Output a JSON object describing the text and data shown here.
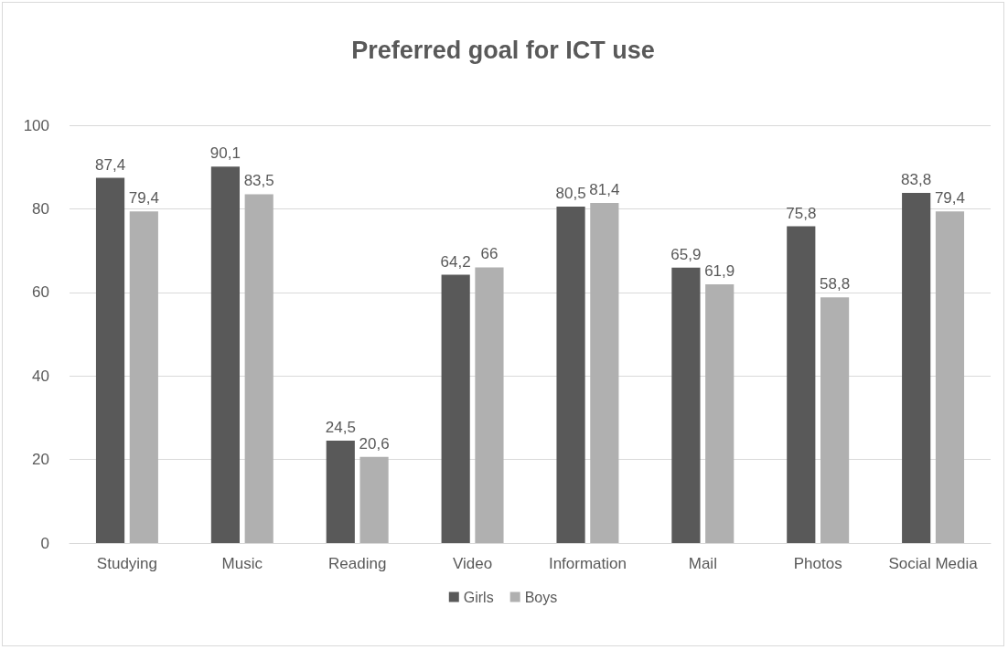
{
  "chart_data": {
    "type": "bar",
    "title": "Preferred goal for ICT use",
    "categories": [
      "Studying",
      "Music",
      "Reading",
      "Video",
      "Information",
      "Mail",
      "Photos",
      "Social Media"
    ],
    "series": [
      {
        "name": "Girls",
        "color": "#595959",
        "values": [
          87.4,
          90.1,
          24.5,
          64.2,
          80.5,
          65.9,
          75.8,
          83.8
        ],
        "value_labels": [
          "87,4",
          "90,1",
          "24,5",
          "64,2",
          "80,5",
          "65,9",
          "75,8",
          "83,8"
        ]
      },
      {
        "name": "Boys",
        "color": "#b0b0b0",
        "values": [
          79.4,
          83.5,
          20.6,
          66,
          81.4,
          61.9,
          58.8,
          79.4
        ],
        "value_labels": [
          "79,4",
          "83,5",
          "20,6",
          "66",
          "81,4",
          "61,9",
          "58,8",
          "79,4"
        ]
      }
    ],
    "ylim": [
      0,
      100
    ],
    "yticks": [
      0,
      20,
      40,
      60,
      80,
      100
    ],
    "grid": "y",
    "legend": "bottom"
  }
}
